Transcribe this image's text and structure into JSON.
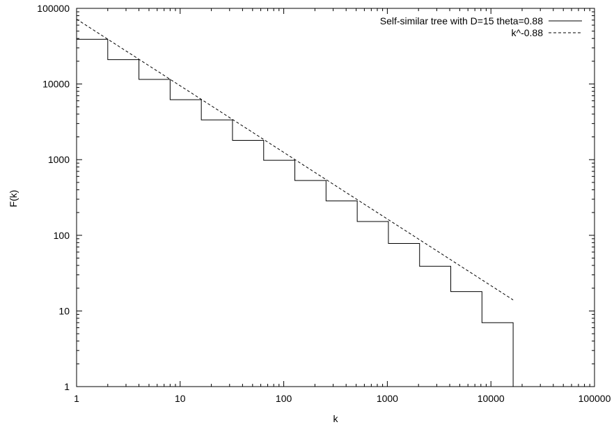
{
  "chart_data": {
    "type": "line",
    "title": "",
    "xlabel": "k",
    "ylabel": "F(k)",
    "xscale": "log",
    "yscale": "log",
    "xlim": [
      1,
      100000
    ],
    "ylim": [
      1,
      100000
    ],
    "grid": false,
    "legend_position": "top-right",
    "x_ticks": [
      "1",
      "10",
      "100",
      "1000",
      "10000",
      "100000"
    ],
    "y_ticks": [
      "1",
      "10",
      "100",
      "1000",
      "10000",
      "100000"
    ],
    "series": [
      {
        "name": "Self-similar tree with D=15 theta=0.88",
        "style": "solid-step",
        "color": "#000000",
        "x": [
          1,
          2,
          2,
          4,
          4,
          8,
          8,
          16,
          16,
          32,
          32,
          64,
          64,
          128,
          128,
          256,
          256,
          512,
          512,
          1024,
          1024,
          2048,
          2048,
          4096,
          4096,
          8192,
          8192,
          16384,
          16384
        ],
        "y": [
          39000,
          39000,
          21000,
          21000,
          11500,
          11500,
          6200,
          6200,
          3350,
          3350,
          1800,
          1800,
          980,
          980,
          530,
          530,
          285,
          285,
          152,
          152,
          78,
          78,
          39,
          39,
          18,
          18,
          7,
          7,
          1
        ]
      },
      {
        "name": "k^-0.88",
        "style": "dashed",
        "color": "#000000",
        "x": [
          1,
          16384
        ],
        "y": [
          72000,
          14
        ]
      }
    ]
  }
}
